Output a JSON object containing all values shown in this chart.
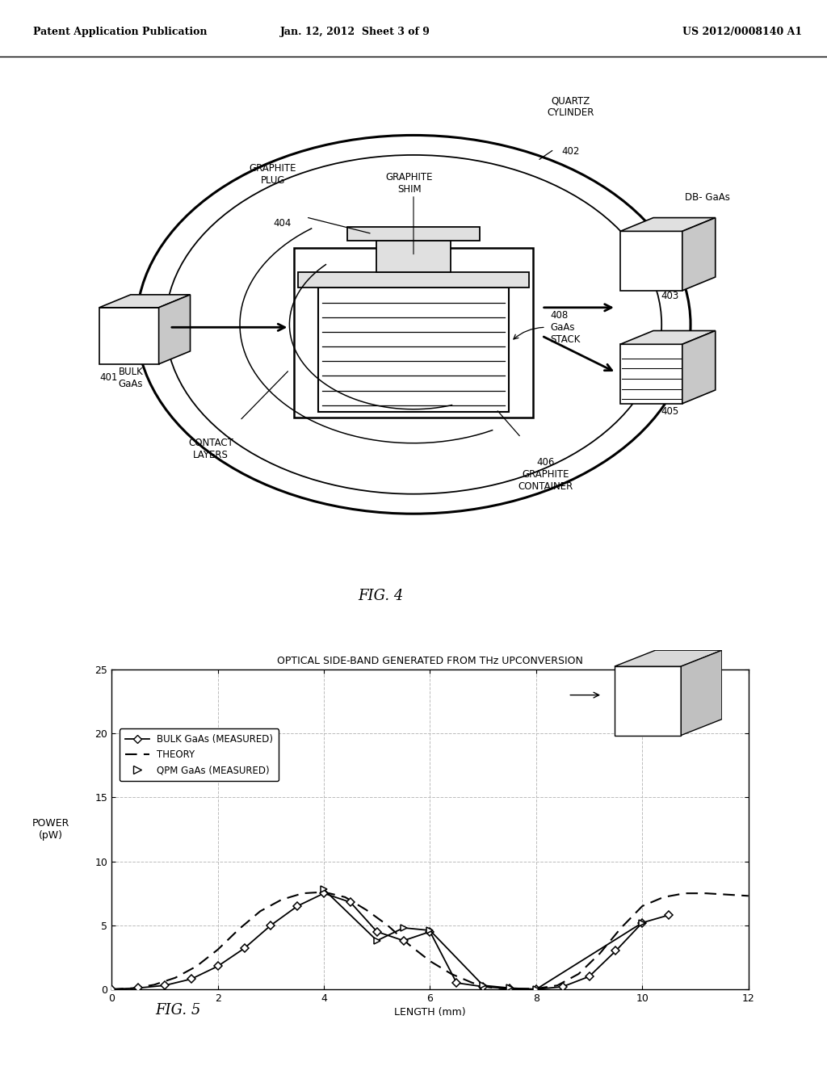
{
  "header_left": "Patent Application Publication",
  "header_mid": "Jan. 12, 2012  Sheet 3 of 9",
  "header_right": "US 2012/0008140 A1",
  "fig4_label": "FIG. 4",
  "fig5_label": "FIG. 5",
  "fig5_title": "OPTICAL SIDE-BAND GENERATED FROM THz UPCONVERSION",
  "fig5_xlabel": "LENGTH (mm)",
  "fig5_ylabel_line1": "POWER",
  "fig5_ylabel_line2": "(pW)",
  "fig5_xlim": [
    0,
    12
  ],
  "fig5_ylim": [
    0,
    25
  ],
  "fig5_xticks": [
    0,
    2,
    4,
    6,
    8,
    10,
    12
  ],
  "fig5_yticks": [
    0,
    5,
    10,
    15,
    20,
    25
  ],
  "bulk_gaas_x": [
    0,
    0.5,
    1.0,
    1.5,
    2.0,
    2.5,
    3.0,
    3.5,
    4.0,
    4.5,
    5.0,
    5.5,
    6.0,
    6.5,
    7.0,
    7.5,
    8.0,
    8.5,
    9.0,
    9.5,
    10.0,
    10.5
  ],
  "bulk_gaas_y": [
    0,
    0.1,
    0.3,
    0.8,
    1.8,
    3.2,
    5.0,
    6.5,
    7.5,
    6.8,
    4.5,
    3.8,
    4.5,
    0.5,
    0.2,
    0.05,
    0.0,
    0.2,
    1.0,
    3.0,
    5.2,
    5.8
  ],
  "theory_x": [
    0,
    0.4,
    0.8,
    1.2,
    1.6,
    2.0,
    2.4,
    2.8,
    3.2,
    3.6,
    4.0,
    4.4,
    4.8,
    5.2,
    5.6,
    6.0,
    6.4,
    6.8,
    7.0,
    7.2,
    7.6,
    8.0,
    8.4,
    8.8,
    9.2,
    9.6,
    10.0,
    10.4,
    10.8,
    11.2,
    11.6,
    12.0
  ],
  "theory_y": [
    0,
    0.08,
    0.35,
    0.9,
    1.8,
    3.1,
    4.7,
    6.1,
    7.0,
    7.5,
    7.6,
    7.2,
    6.2,
    5.0,
    3.5,
    2.2,
    1.2,
    0.5,
    0.25,
    0.1,
    0.02,
    0.05,
    0.3,
    1.2,
    2.8,
    4.8,
    6.5,
    7.2,
    7.5,
    7.5,
    7.4,
    7.3
  ],
  "qpm_gaas_x": [
    4.0,
    5.0,
    5.5,
    6.0,
    7.0,
    7.5,
    8.0,
    10.0
  ],
  "qpm_gaas_y": [
    7.8,
    3.8,
    4.8,
    4.6,
    0.3,
    0.1,
    0.0,
    5.2
  ],
  "bg_color": "#ffffff",
  "line_color": "#000000",
  "grid_color": "#bbbbbb"
}
